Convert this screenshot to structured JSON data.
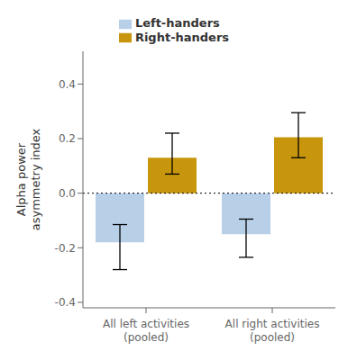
{
  "chart_data": {
    "type": "bar",
    "ylabel": "Alpha power\nasymmetry index",
    "categories": [
      "All left activities\n(pooled)",
      "All right activities\n(pooled)"
    ],
    "series": [
      {
        "name": "Left-handers",
        "color": "#b8cfe8",
        "values": [
          -0.18,
          -0.15
        ],
        "error_low": [
          0.1,
          0.085
        ],
        "error_high": [
          0.065,
          0.055
        ]
      },
      {
        "name": "Right-handers",
        "color": "#c8960c",
        "values": [
          0.13,
          0.205
        ],
        "error_low": [
          0.06,
          0.075
        ],
        "error_high": [
          0.09,
          0.09
        ]
      }
    ],
    "ylim": [
      -0.42,
      0.52
    ],
    "yticks": [
      -0.4,
      -0.2,
      {
        "value": 0,
        "label": "0.0"
      },
      0.2,
      0.4
    ],
    "reference_line_y": 0,
    "legend": "upper center",
    "grid": false
  }
}
